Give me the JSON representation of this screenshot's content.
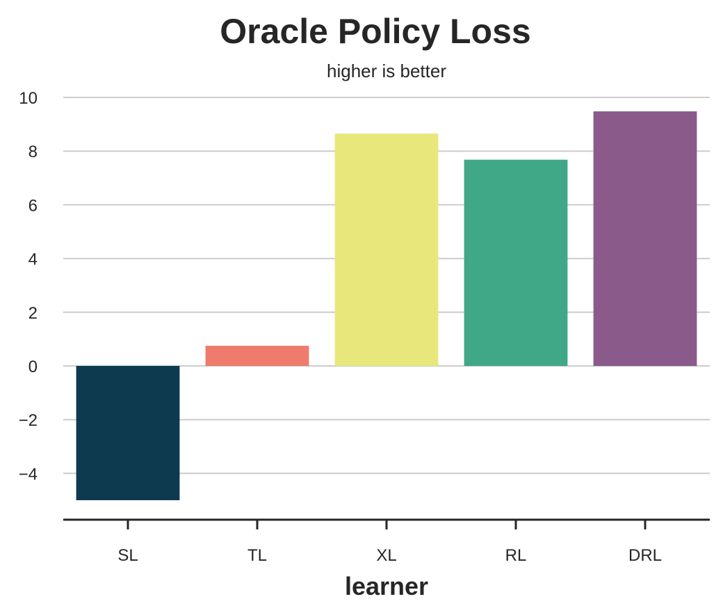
{
  "chart_data": {
    "type": "bar",
    "title": "Oracle Policy Loss",
    "subtitle": "higher is better",
    "xlabel": "learner",
    "ylabel": "",
    "categories": [
      "SL",
      "TL",
      "XL",
      "RL",
      "DRL"
    ],
    "values": [
      -5.0,
      0.75,
      8.65,
      7.68,
      9.48
    ],
    "colors": [
      "#0e3a4f",
      "#ee7b6b",
      "#e8e77c",
      "#40a787",
      "#8a5a8a"
    ],
    "ylim": [
      -5.7,
      10.5
    ],
    "yticks": [
      -4,
      -2,
      0,
      2,
      4,
      6,
      8,
      10
    ],
    "ytick_labels": [
      "−4",
      "−2",
      "0",
      "2",
      "4",
      "6",
      "8",
      "10"
    ],
    "grid": true,
    "legend": "none"
  }
}
